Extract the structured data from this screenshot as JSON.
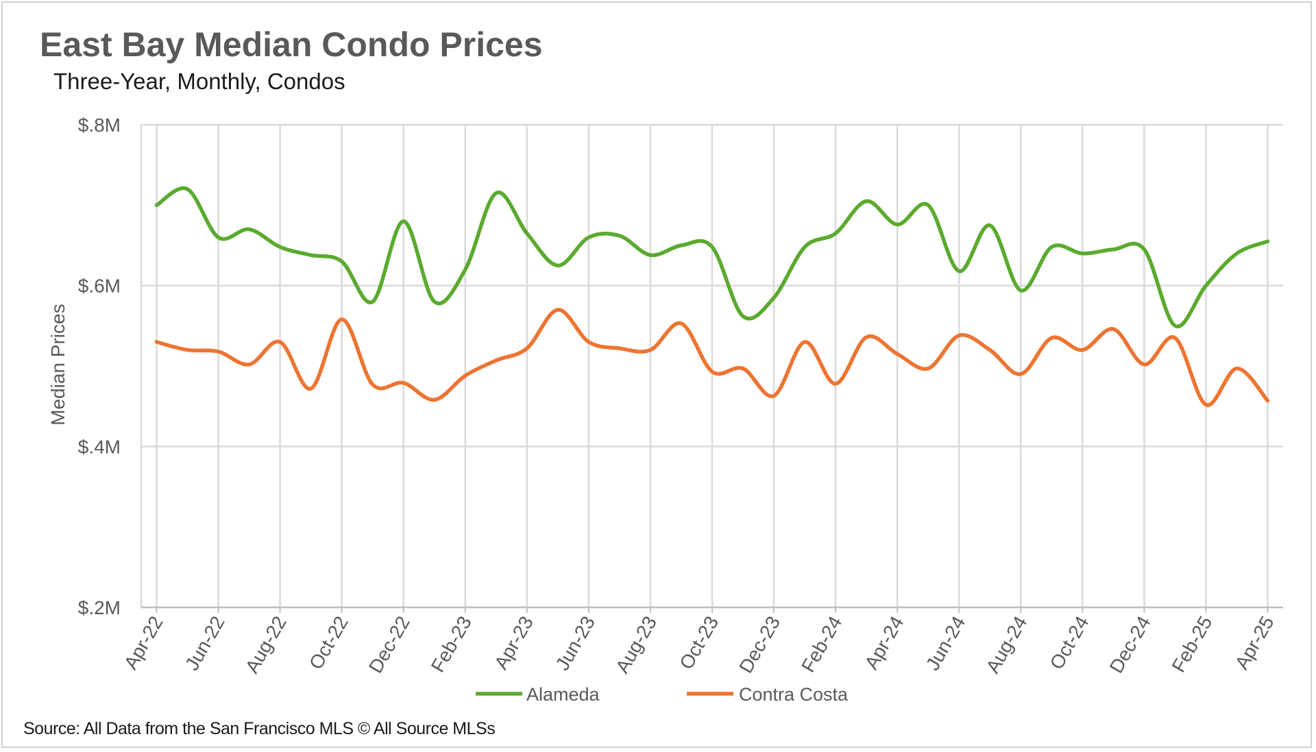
{
  "chart_data": {
    "type": "line",
    "title": "East Bay Median Condo Prices",
    "subtitle": "Three-Year, Monthly, Condos",
    "ylabel": "Median Prices",
    "xlabel": "",
    "source": "Source: All Data from the San Francisco MLS © All Source MLSs",
    "ylim": [
      200000,
      800000
    ],
    "yticks": [
      {
        "value": 200000,
        "label": "$.2M"
      },
      {
        "value": 400000,
        "label": "$.4M"
      },
      {
        "value": 600000,
        "label": "$.6M"
      },
      {
        "value": 800000,
        "label": "$.8M"
      }
    ],
    "x": [
      "Apr-22",
      "May-22",
      "Jun-22",
      "Jul-22",
      "Aug-22",
      "Sep-22",
      "Oct-22",
      "Nov-22",
      "Dec-22",
      "Jan-23",
      "Feb-23",
      "Mar-23",
      "Apr-23",
      "May-23",
      "Jun-23",
      "Jul-23",
      "Aug-23",
      "Sep-23",
      "Oct-23",
      "Nov-23",
      "Dec-23",
      "Jan-24",
      "Feb-24",
      "Mar-24",
      "Apr-24",
      "May-24",
      "Jun-24",
      "Jul-24",
      "Aug-24",
      "Sep-24",
      "Oct-24",
      "Nov-24",
      "Dec-24",
      "Jan-25",
      "Feb-25",
      "Mar-25",
      "Apr-25"
    ],
    "xtick_labels": [
      "Apr-22",
      "Jun-22",
      "Aug-22",
      "Oct-22",
      "Dec-22",
      "Feb-23",
      "Apr-23",
      "Jun-23",
      "Aug-23",
      "Oct-23",
      "Dec-23",
      "Feb-24",
      "Apr-24",
      "Jun-24",
      "Aug-24",
      "Oct-24",
      "Dec-24",
      "Feb-25",
      "Apr-25"
    ],
    "grid": true,
    "legend_position": "bottom",
    "series": [
      {
        "name": "Alameda",
        "color": "#5aaa2e",
        "values": [
          700000,
          720000,
          660000,
          670000,
          648000,
          638000,
          630000,
          580000,
          680000,
          580000,
          620000,
          715000,
          665000,
          625000,
          660000,
          662000,
          638000,
          650000,
          648000,
          562000,
          585000,
          648000,
          665000,
          705000,
          676000,
          700000,
          618000,
          675000,
          594000,
          648000,
          640000,
          645000,
          645000,
          550000,
          600000,
          640000,
          655000
        ]
      },
      {
        "name": "Contra Costa",
        "color": "#ed7431",
        "values": [
          530000,
          520000,
          518000,
          502000,
          530000,
          472000,
          558000,
          477000,
          479000,
          458000,
          488000,
          507000,
          522000,
          570000,
          530000,
          522000,
          520000,
          553000,
          493000,
          497000,
          463000,
          530000,
          478000,
          536000,
          515000,
          497000,
          538000,
          520000,
          490000,
          535000,
          520000,
          546000,
          502000,
          535000,
          452000,
          497000,
          457000
        ]
      }
    ]
  }
}
